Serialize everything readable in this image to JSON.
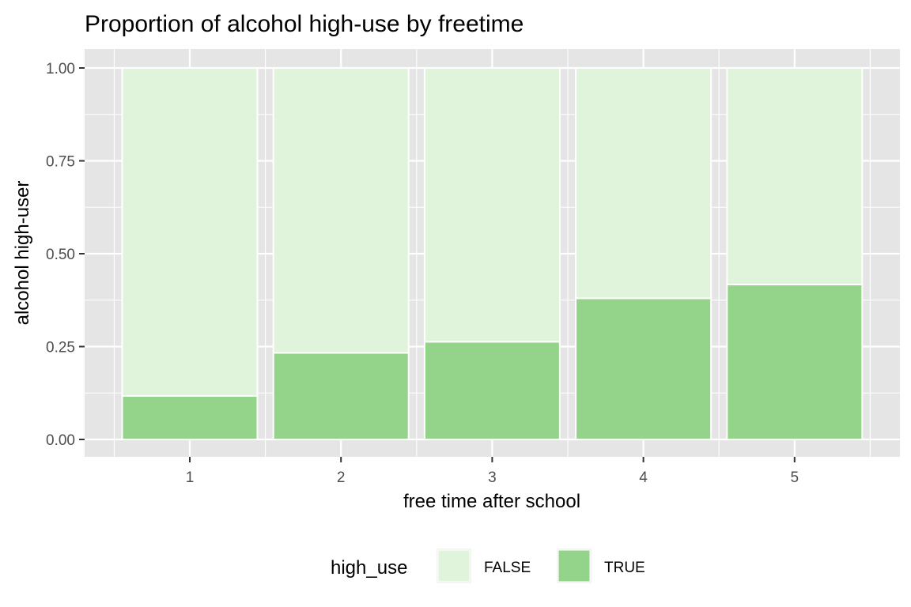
{
  "chart_data": {
    "type": "bar",
    "title": "Proportion of alcohol high-use by freetime",
    "xlabel": "free time after school",
    "ylabel": "alcohol high-user",
    "categories": [
      "1",
      "2",
      "3",
      "4",
      "5"
    ],
    "stacked": true,
    "normalized": true,
    "ylim": [
      0,
      1
    ],
    "yticks": [
      0,
      0.25,
      0.5,
      0.75,
      1
    ],
    "ytick_labels": [
      "0.00",
      "0.25",
      "0.50",
      "0.75",
      "1.00"
    ],
    "grid": true,
    "legend_position": "bottom",
    "legend_title": "high_use",
    "series": [
      {
        "name": "FALSE",
        "color": "#e0f3db",
        "values": [
          0.883,
          0.767,
          0.737,
          0.62,
          0.583
        ]
      },
      {
        "name": "TRUE",
        "color": "#94d38a",
        "values": [
          0.117,
          0.233,
          0.263,
          0.38,
          0.417
        ]
      }
    ],
    "panel_background": "#e5e5e5",
    "grid_color": "#ffffff"
  }
}
